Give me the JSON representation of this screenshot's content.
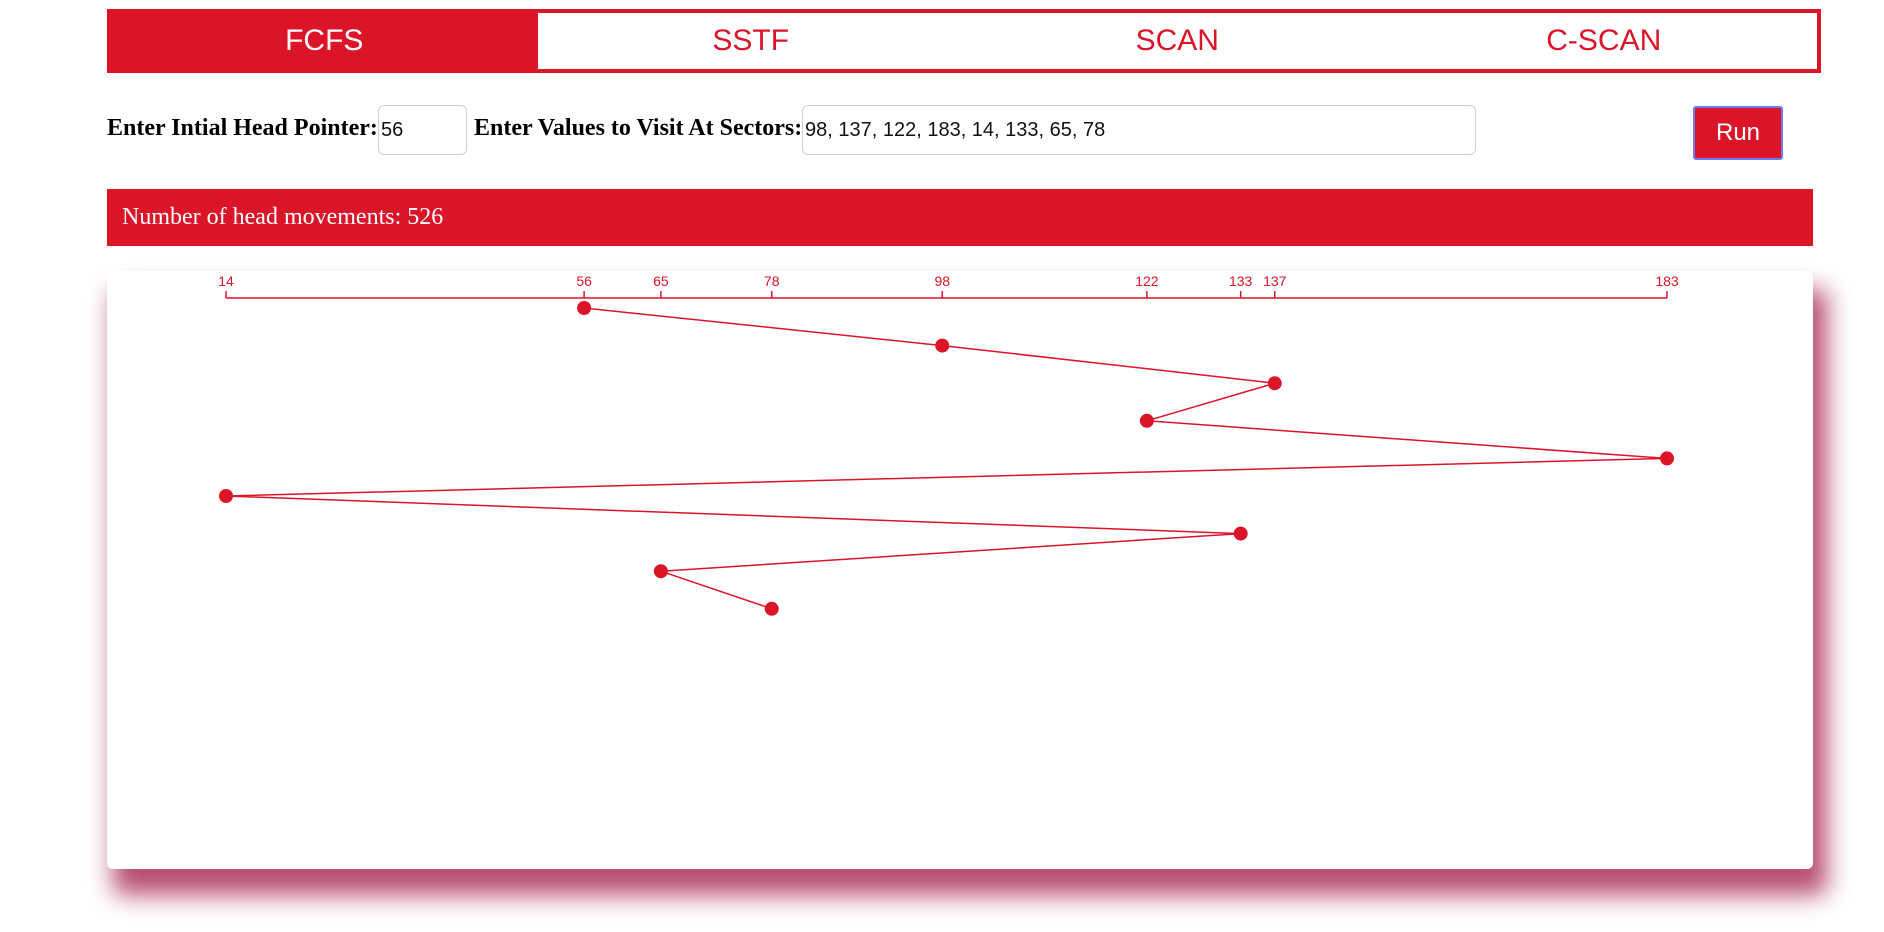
{
  "tabs": [
    {
      "label": "FCFS",
      "active": true
    },
    {
      "label": "SSTF",
      "active": false
    },
    {
      "label": "SCAN",
      "active": false
    },
    {
      "label": "C-SCAN",
      "active": false
    }
  ],
  "controls": {
    "head_label": "Enter Intial Head Pointer:",
    "head_value": "56",
    "sectors_label": "Enter Values to Visit At Sectors:",
    "sectors_value": "98, 137, 122, 183, 14, 133, 65, 78",
    "run_label": "Run"
  },
  "result": {
    "text": "Number of head movements: 526"
  },
  "colors": {
    "accent": "#dc1428",
    "shadow": "#a01446"
  },
  "chart_data": {
    "type": "line",
    "title": "",
    "xlabel": "",
    "ylabel": "",
    "x_ticks": [
      14,
      56,
      65,
      78,
      98,
      122,
      133,
      137,
      183
    ],
    "xlim": [
      14,
      183
    ],
    "axis_position": "top",
    "grid": false,
    "series": [
      {
        "points": [
          {
            "step": 0,
            "x": 56
          },
          {
            "step": 1,
            "x": 98
          },
          {
            "step": 2,
            "x": 137
          },
          {
            "step": 3,
            "x": 122
          },
          {
            "step": 4,
            "x": 183
          },
          {
            "step": 5,
            "x": 14
          },
          {
            "step": 6,
            "x": 133
          },
          {
            "step": 7,
            "x": 65
          },
          {
            "step": 8,
            "x": 78
          }
        ]
      }
    ]
  }
}
